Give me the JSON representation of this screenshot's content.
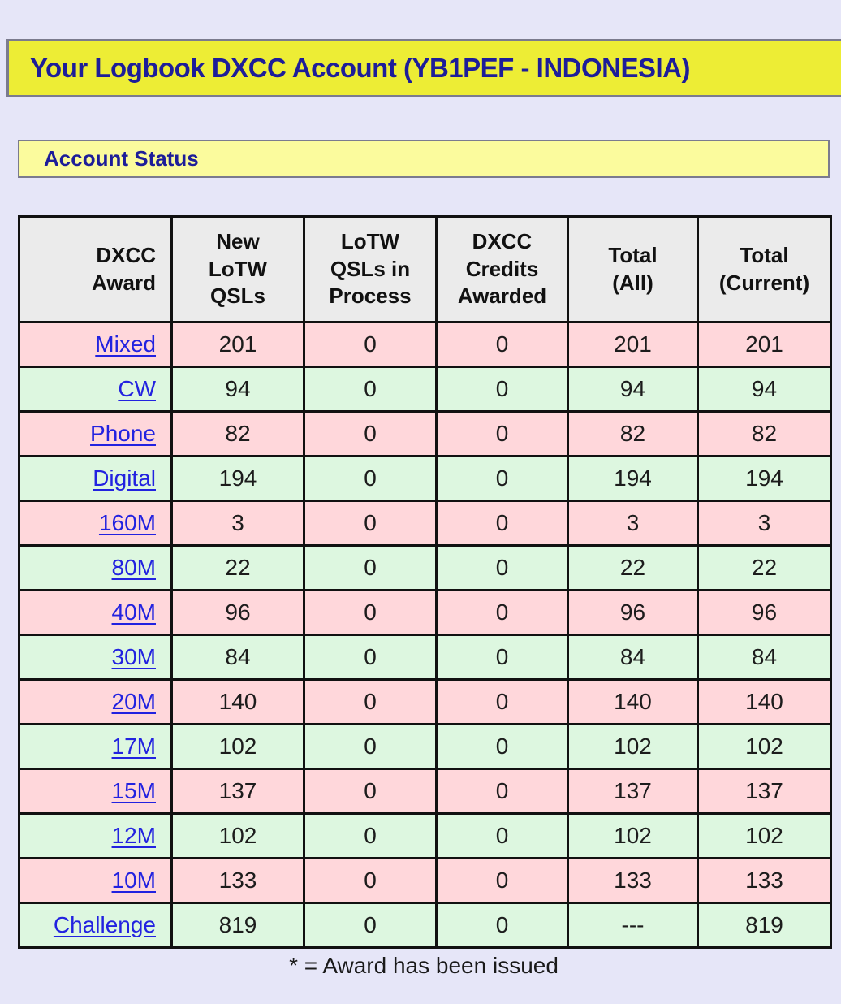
{
  "header": {
    "title": "Your Logbook DXCC Account (YB1PEF - INDONESIA)",
    "section": "Account Status"
  },
  "table": {
    "columns": [
      "DXCC\nAward",
      "New\nLoTW\nQSLs",
      "LoTW\nQSLs in\nProcess",
      "DXCC\nCredits\nAwarded",
      "Total\n(All)",
      "Total\n(Current)"
    ],
    "rows": [
      {
        "award": "Mixed",
        "values": [
          "201",
          "0",
          "0",
          "201",
          "201"
        ]
      },
      {
        "award": "CW",
        "values": [
          "94",
          "0",
          "0",
          "94",
          "94"
        ]
      },
      {
        "award": "Phone",
        "values": [
          "82",
          "0",
          "0",
          "82",
          "82"
        ]
      },
      {
        "award": "Digital",
        "values": [
          "194",
          "0",
          "0",
          "194",
          "194"
        ]
      },
      {
        "award": "160M",
        "values": [
          "3",
          "0",
          "0",
          "3",
          "3"
        ]
      },
      {
        "award": "80M",
        "values": [
          "22",
          "0",
          "0",
          "22",
          "22"
        ]
      },
      {
        "award": "40M",
        "values": [
          "96",
          "0",
          "0",
          "96",
          "96"
        ]
      },
      {
        "award": "30M",
        "values": [
          "84",
          "0",
          "0",
          "84",
          "84"
        ]
      },
      {
        "award": "20M",
        "values": [
          "140",
          "0",
          "0",
          "140",
          "140"
        ]
      },
      {
        "award": "17M",
        "values": [
          "102",
          "0",
          "0",
          "102",
          "102"
        ]
      },
      {
        "award": "15M",
        "values": [
          "137",
          "0",
          "0",
          "137",
          "137"
        ]
      },
      {
        "award": "12M",
        "values": [
          "102",
          "0",
          "0",
          "102",
          "102"
        ]
      },
      {
        "award": "10M",
        "values": [
          "133",
          "0",
          "0",
          "133",
          "133"
        ]
      },
      {
        "award": "Challenge",
        "values": [
          "819",
          "0",
          "0",
          "---",
          "819"
        ]
      }
    ]
  },
  "footnote": "* = Award has been issued",
  "colors": {
    "page_background": "#e6e6f8",
    "title_banner_background": "#eded35",
    "section_banner_background": "#fbfb9d",
    "banner_border": "#7b7b8e",
    "heading_text": "#1d1d99",
    "table_header_background": "#ebebeb",
    "row_pink": "#ffd7db",
    "row_green": "#ddf7e0",
    "link_blue": "#2222e0",
    "table_border": "#111111"
  }
}
